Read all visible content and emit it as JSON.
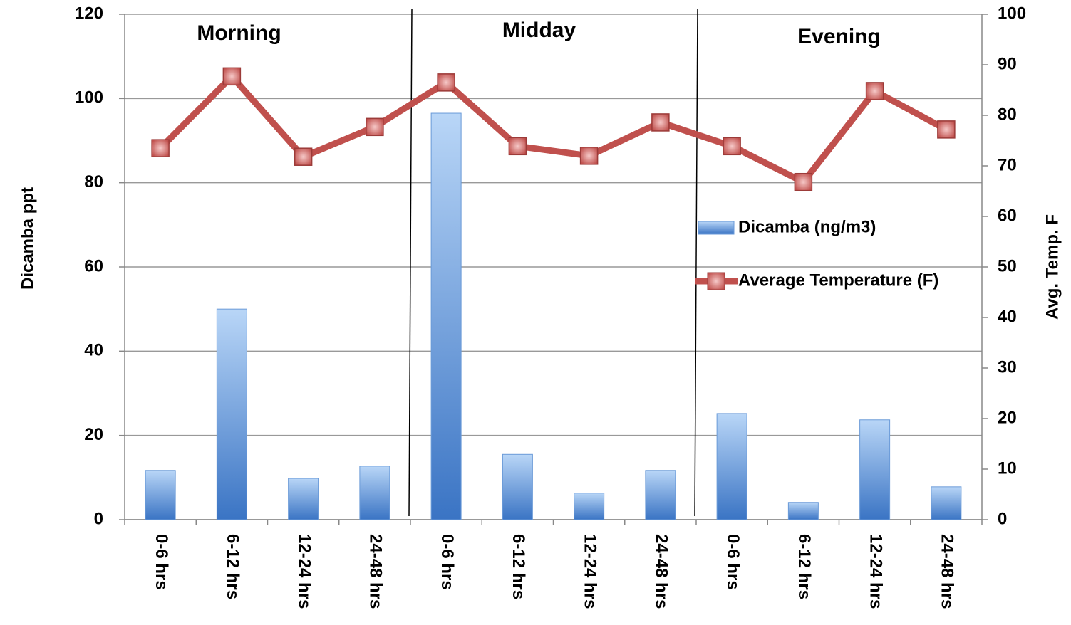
{
  "chart_data": {
    "type": "bar_line",
    "categories": [
      "0-6 hrs",
      "6-12 hrs",
      "12-24 hrs",
      "24-48 hrs",
      "0-6 hrs",
      "6-12 hrs",
      "12-24 hrs",
      "24-48 hrs",
      "0-6 hrs",
      "6-12 hrs",
      "12-24 hrs",
      "24-48 hrs"
    ],
    "annotations": [
      "Morning",
      "Midday",
      "Evening"
    ],
    "ylabel": "Dicamba ppt",
    "y2label": "Avg. Temp. F",
    "series": [
      {
        "name": "Dicamba (ng/m3)",
        "type": "bar",
        "color": "#4a86d0",
        "values": [
          11.7,
          50,
          9.8,
          12.7,
          96.5,
          15.5,
          6.3,
          11.7,
          25.2,
          4.1,
          23.7,
          7.8
        ]
      },
      {
        "name": "Average Temperature (F)",
        "type": "line",
        "axis": "y2",
        "color": "#c0504d",
        "values": [
          73.5,
          87.7,
          71.8,
          77.7,
          86.5,
          73.9,
          72.0,
          78.6,
          73.9,
          66.8,
          84.8,
          77.2
        ]
      }
    ],
    "ylim": [
      0,
      120
    ],
    "yticks": [
      0,
      20,
      40,
      60,
      80,
      100,
      120
    ],
    "y2lim": [
      0,
      100
    ],
    "y2ticks": [
      0,
      10,
      20,
      30,
      40,
      50,
      60,
      70,
      80,
      90,
      100
    ],
    "grid": true,
    "legend": "right"
  }
}
